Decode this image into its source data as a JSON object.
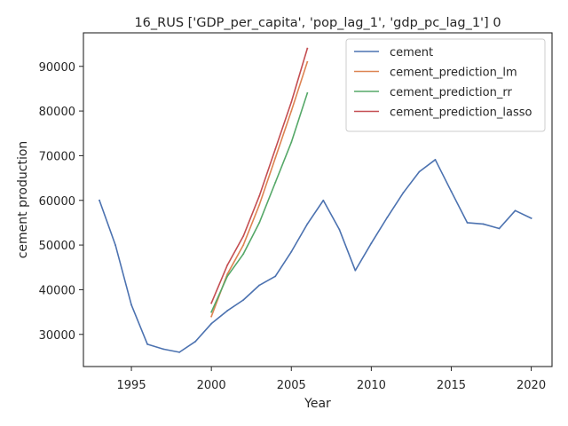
{
  "chart_data": {
    "type": "line",
    "title": "16_RUS ['GDP_per_capita', 'pop_lag_1', 'gdp_pc_lag_1'] 0",
    "xlabel": "Year",
    "ylabel": "cement production",
    "xlim": [
      1992,
      2021.3
    ],
    "ylim": [
      22800,
      97500
    ],
    "xticks": [
      1995,
      2000,
      2005,
      2010,
      2015,
      2020
    ],
    "yticks": [
      30000,
      40000,
      50000,
      60000,
      70000,
      80000,
      90000
    ],
    "grid": false,
    "legend_position": "upper-right",
    "series": [
      {
        "name": "cement",
        "color": "#4c72b0",
        "x": [
          1993,
          1994,
          1995,
          1996,
          1997,
          1998,
          1999,
          2000,
          2001,
          2002,
          2003,
          2004,
          2005,
          2006,
          2007,
          2008,
          2009,
          2010,
          2011,
          2012,
          2013,
          2014,
          2015,
          2016,
          2017,
          2018,
          2019,
          2020
        ],
        "y": [
          60000,
          50000,
          36600,
          27800,
          26700,
          26000,
          28400,
          32400,
          35300,
          37700,
          41000,
          43000,
          48500,
          54700,
          60000,
          53500,
          44300,
          50400,
          56200,
          61700,
          66400,
          69100,
          62000,
          55000,
          54700,
          53700,
          57700,
          56000
        ]
      },
      {
        "name": "cement_prediction_lm",
        "color": "#dd8452",
        "x": [
          2000,
          2001,
          2002,
          2003,
          2004,
          2005,
          2006
        ],
        "y": [
          34000,
          43500,
          50000,
          59000,
          69500,
          80000,
          91000
        ]
      },
      {
        "name": "cement_prediction_rr",
        "color": "#55a868",
        "x": [
          2000,
          2001,
          2002,
          2003,
          2004,
          2005,
          2006
        ],
        "y": [
          35000,
          43000,
          48000,
          55000,
          64000,
          73000,
          84000
        ]
      },
      {
        "name": "cement_prediction_lasso",
        "color": "#c44e52",
        "x": [
          2000,
          2001,
          2002,
          2003,
          2004,
          2005,
          2006
        ],
        "y": [
          37000,
          45500,
          52000,
          61000,
          71500,
          82000,
          94000
        ]
      }
    ]
  }
}
